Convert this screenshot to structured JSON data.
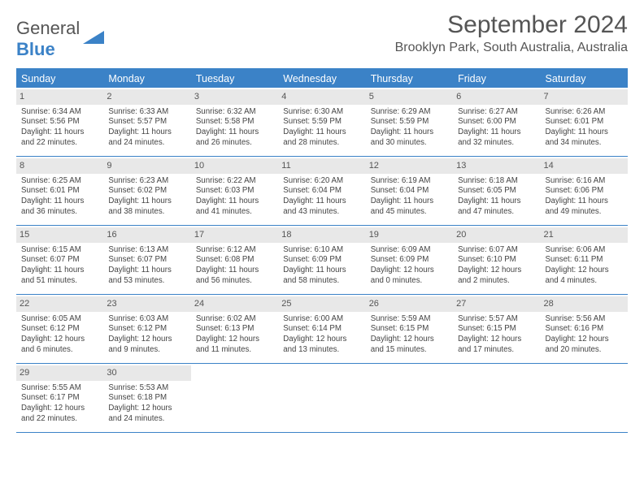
{
  "logo": {
    "word1": "General",
    "word2": "Blue"
  },
  "header": {
    "month_title": "September 2024",
    "location": "Brooklyn Park, South Australia, Australia"
  },
  "colors": {
    "accent": "#3b82c7",
    "header_bg": "#3b82c7",
    "daynum_bg": "#e8e8e8",
    "text": "#555555",
    "body_text": "#444444",
    "page_bg": "#ffffff"
  },
  "day_names": [
    "Sunday",
    "Monday",
    "Tuesday",
    "Wednesday",
    "Thursday",
    "Friday",
    "Saturday"
  ],
  "start_offset": 0,
  "days": [
    {
      "n": 1,
      "sunrise": "6:34 AM",
      "sunset": "5:56 PM",
      "dl": "11 hours and 22 minutes."
    },
    {
      "n": 2,
      "sunrise": "6:33 AM",
      "sunset": "5:57 PM",
      "dl": "11 hours and 24 minutes."
    },
    {
      "n": 3,
      "sunrise": "6:32 AM",
      "sunset": "5:58 PM",
      "dl": "11 hours and 26 minutes."
    },
    {
      "n": 4,
      "sunrise": "6:30 AM",
      "sunset": "5:59 PM",
      "dl": "11 hours and 28 minutes."
    },
    {
      "n": 5,
      "sunrise": "6:29 AM",
      "sunset": "5:59 PM",
      "dl": "11 hours and 30 minutes."
    },
    {
      "n": 6,
      "sunrise": "6:27 AM",
      "sunset": "6:00 PM",
      "dl": "11 hours and 32 minutes."
    },
    {
      "n": 7,
      "sunrise": "6:26 AM",
      "sunset": "6:01 PM",
      "dl": "11 hours and 34 minutes."
    },
    {
      "n": 8,
      "sunrise": "6:25 AM",
      "sunset": "6:01 PM",
      "dl": "11 hours and 36 minutes."
    },
    {
      "n": 9,
      "sunrise": "6:23 AM",
      "sunset": "6:02 PM",
      "dl": "11 hours and 38 minutes."
    },
    {
      "n": 10,
      "sunrise": "6:22 AM",
      "sunset": "6:03 PM",
      "dl": "11 hours and 41 minutes."
    },
    {
      "n": 11,
      "sunrise": "6:20 AM",
      "sunset": "6:04 PM",
      "dl": "11 hours and 43 minutes."
    },
    {
      "n": 12,
      "sunrise": "6:19 AM",
      "sunset": "6:04 PM",
      "dl": "11 hours and 45 minutes."
    },
    {
      "n": 13,
      "sunrise": "6:18 AM",
      "sunset": "6:05 PM",
      "dl": "11 hours and 47 minutes."
    },
    {
      "n": 14,
      "sunrise": "6:16 AM",
      "sunset": "6:06 PM",
      "dl": "11 hours and 49 minutes."
    },
    {
      "n": 15,
      "sunrise": "6:15 AM",
      "sunset": "6:07 PM",
      "dl": "11 hours and 51 minutes."
    },
    {
      "n": 16,
      "sunrise": "6:13 AM",
      "sunset": "6:07 PM",
      "dl": "11 hours and 53 minutes."
    },
    {
      "n": 17,
      "sunrise": "6:12 AM",
      "sunset": "6:08 PM",
      "dl": "11 hours and 56 minutes."
    },
    {
      "n": 18,
      "sunrise": "6:10 AM",
      "sunset": "6:09 PM",
      "dl": "11 hours and 58 minutes."
    },
    {
      "n": 19,
      "sunrise": "6:09 AM",
      "sunset": "6:09 PM",
      "dl": "12 hours and 0 minutes."
    },
    {
      "n": 20,
      "sunrise": "6:07 AM",
      "sunset": "6:10 PM",
      "dl": "12 hours and 2 minutes."
    },
    {
      "n": 21,
      "sunrise": "6:06 AM",
      "sunset": "6:11 PM",
      "dl": "12 hours and 4 minutes."
    },
    {
      "n": 22,
      "sunrise": "6:05 AM",
      "sunset": "6:12 PM",
      "dl": "12 hours and 6 minutes."
    },
    {
      "n": 23,
      "sunrise": "6:03 AM",
      "sunset": "6:12 PM",
      "dl": "12 hours and 9 minutes."
    },
    {
      "n": 24,
      "sunrise": "6:02 AM",
      "sunset": "6:13 PM",
      "dl": "12 hours and 11 minutes."
    },
    {
      "n": 25,
      "sunrise": "6:00 AM",
      "sunset": "6:14 PM",
      "dl": "12 hours and 13 minutes."
    },
    {
      "n": 26,
      "sunrise": "5:59 AM",
      "sunset": "6:15 PM",
      "dl": "12 hours and 15 minutes."
    },
    {
      "n": 27,
      "sunrise": "5:57 AM",
      "sunset": "6:15 PM",
      "dl": "12 hours and 17 minutes."
    },
    {
      "n": 28,
      "sunrise": "5:56 AM",
      "sunset": "6:16 PM",
      "dl": "12 hours and 20 minutes."
    },
    {
      "n": 29,
      "sunrise": "5:55 AM",
      "sunset": "6:17 PM",
      "dl": "12 hours and 22 minutes."
    },
    {
      "n": 30,
      "sunrise": "5:53 AM",
      "sunset": "6:18 PM",
      "dl": "12 hours and 24 minutes."
    }
  ],
  "labels": {
    "sunrise": "Sunrise: ",
    "sunset": "Sunset: ",
    "daylight": "Daylight: "
  },
  "typography": {
    "title_fontsize": 30,
    "location_fontsize": 16,
    "dayheader_fontsize": 12.5,
    "cell_fontsize": 9.7,
    "daynum_fontsize": 11
  }
}
